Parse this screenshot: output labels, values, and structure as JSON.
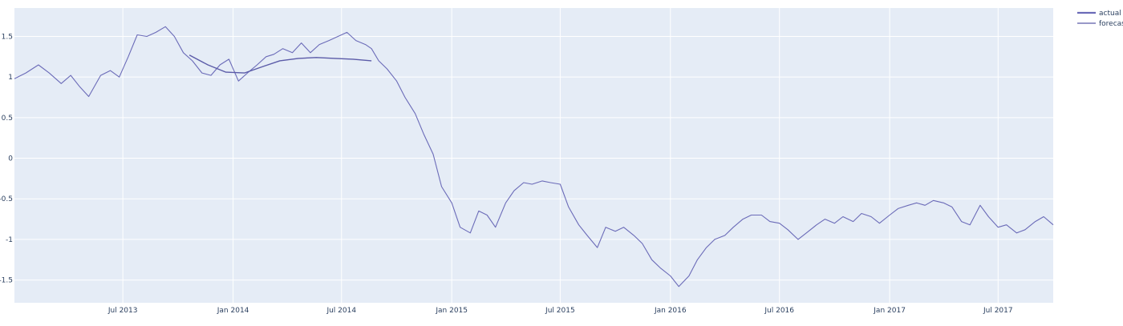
{
  "chart_data": {
    "type": "line",
    "title": "",
    "xlabel": "",
    "ylabel": "",
    "xlim": [
      "2013-01-01",
      "2017-10-01"
    ],
    "ylim": [
      -1.78,
      1.85
    ],
    "grid": true,
    "legend_position": "top-right",
    "y_ticks": [
      1.5,
      1,
      0.5,
      0,
      -0.5,
      -1,
      -1.5
    ],
    "x_ticks": [
      {
        "date": "2013-07-01",
        "label": "Jul 2013"
      },
      {
        "date": "2014-01-01",
        "label": "Jan 2014"
      },
      {
        "date": "2014-07-01",
        "label": "Jul 2014"
      },
      {
        "date": "2015-01-01",
        "label": "Jan 2015"
      },
      {
        "date": "2015-07-01",
        "label": "Jul 2015"
      },
      {
        "date": "2016-01-01",
        "label": "Jan 2016"
      },
      {
        "date": "2016-07-01",
        "label": "Jul 2016"
      },
      {
        "date": "2017-01-01",
        "label": "Jan 2017"
      },
      {
        "date": "2017-07-01",
        "label": "Jul 2017"
      }
    ],
    "series": [
      {
        "name": "actual",
        "color": "#6b6bb8",
        "x": [
          "2013-01-01",
          "2013-01-20",
          "2013-02-10",
          "2013-02-28",
          "2013-03-20",
          "2013-04-05",
          "2013-04-20",
          "2013-05-05",
          "2013-05-25",
          "2013-06-10",
          "2013-06-25",
          "2013-07-10",
          "2013-07-25",
          "2013-08-10",
          "2013-08-25",
          "2013-09-10",
          "2013-09-25",
          "2013-10-10",
          "2013-10-25",
          "2013-11-10",
          "2013-11-25",
          "2013-12-10",
          "2013-12-25",
          "2014-01-10",
          "2014-01-25",
          "2014-02-10",
          "2014-02-25",
          "2014-03-10",
          "2014-03-25",
          "2014-04-10",
          "2014-04-25",
          "2014-05-10",
          "2014-05-25",
          "2014-06-10",
          "2014-06-25",
          "2014-07-10",
          "2014-07-25",
          "2014-08-10",
          "2014-08-20",
          "2014-09-01",
          "2014-09-15",
          "2014-10-01",
          "2014-10-15",
          "2014-11-01",
          "2014-11-15",
          "2014-12-01",
          "2014-12-15",
          "2015-01-01",
          "2015-01-15",
          "2015-02-01",
          "2015-02-15",
          "2015-03-01",
          "2015-03-15",
          "2015-04-01",
          "2015-04-15",
          "2015-05-01",
          "2015-05-15",
          "2015-06-01",
          "2015-06-15",
          "2015-07-01",
          "2015-07-15",
          "2015-08-01",
          "2015-08-15",
          "2015-09-01",
          "2015-09-15",
          "2015-10-01",
          "2015-10-15",
          "2015-11-01",
          "2015-11-15",
          "2015-12-01",
          "2015-12-15",
          "2016-01-01",
          "2016-01-15",
          "2016-02-01",
          "2016-02-15",
          "2016-03-01",
          "2016-03-15",
          "2016-04-01",
          "2016-04-15",
          "2016-05-01",
          "2016-05-15",
          "2016-06-01",
          "2016-06-15",
          "2016-07-01",
          "2016-07-15",
          "2016-08-01",
          "2016-08-15",
          "2016-09-01",
          "2016-09-15",
          "2016-10-01",
          "2016-10-15",
          "2016-11-01",
          "2016-11-15",
          "2016-12-01",
          "2016-12-15",
          "2017-01-01",
          "2017-01-15",
          "2017-02-01",
          "2017-02-15",
          "2017-03-01",
          "2017-03-15",
          "2017-04-01",
          "2017-04-15",
          "2017-05-01",
          "2017-05-15",
          "2017-06-01",
          "2017-06-15",
          "2017-07-01",
          "2017-07-15",
          "2017-08-01",
          "2017-08-15",
          "2017-09-01",
          "2017-09-15",
          "2017-10-01"
        ],
        "y": [
          0.98,
          1.05,
          1.15,
          1.05,
          0.92,
          1.02,
          0.88,
          0.76,
          1.02,
          1.08,
          1.0,
          1.25,
          1.52,
          1.5,
          1.55,
          1.62,
          1.5,
          1.3,
          1.2,
          1.05,
          1.02,
          1.15,
          1.22,
          0.95,
          1.05,
          1.15,
          1.25,
          1.28,
          1.35,
          1.3,
          1.42,
          1.3,
          1.4,
          1.45,
          1.5,
          1.55,
          1.45,
          1.4,
          1.35,
          1.2,
          1.1,
          0.95,
          0.75,
          0.55,
          0.3,
          0.05,
          -0.35,
          -0.55,
          -0.85,
          -0.92,
          -0.65,
          -0.7,
          -0.85,
          -0.55,
          -0.4,
          -0.3,
          -0.32,
          -0.28,
          -0.3,
          -0.32,
          -0.6,
          -0.82,
          -0.95,
          -1.1,
          -0.85,
          -0.9,
          -0.85,
          -0.95,
          -1.05,
          -1.25,
          -1.35,
          -1.45,
          -1.58,
          -1.45,
          -1.25,
          -1.1,
          -1.0,
          -0.95,
          -0.85,
          -0.75,
          -0.7,
          -0.7,
          -0.78,
          -0.8,
          -0.88,
          -1.0,
          -0.92,
          -0.82,
          -0.75,
          -0.8,
          -0.72,
          -0.78,
          -0.68,
          -0.72,
          -0.8,
          -0.7,
          -0.62,
          -0.58,
          -0.55,
          -0.58,
          -0.52,
          -0.55,
          -0.6,
          -0.78,
          -0.82,
          -0.58,
          -0.72,
          -0.85,
          -0.82,
          -0.92,
          -0.88,
          -0.78,
          -0.72,
          -0.82
        ]
      },
      {
        "name": "forecast",
        "color": "#5b5ba8",
        "x": [
          "2013-10-20",
          "2013-11-20",
          "2013-12-20",
          "2014-01-20",
          "2014-02-20",
          "2014-03-20",
          "2014-04-20",
          "2014-05-20",
          "2014-06-20",
          "2014-07-20",
          "2014-08-20"
        ],
        "y": [
          1.27,
          1.15,
          1.06,
          1.05,
          1.13,
          1.2,
          1.23,
          1.24,
          1.23,
          1.22,
          1.2
        ]
      }
    ]
  }
}
